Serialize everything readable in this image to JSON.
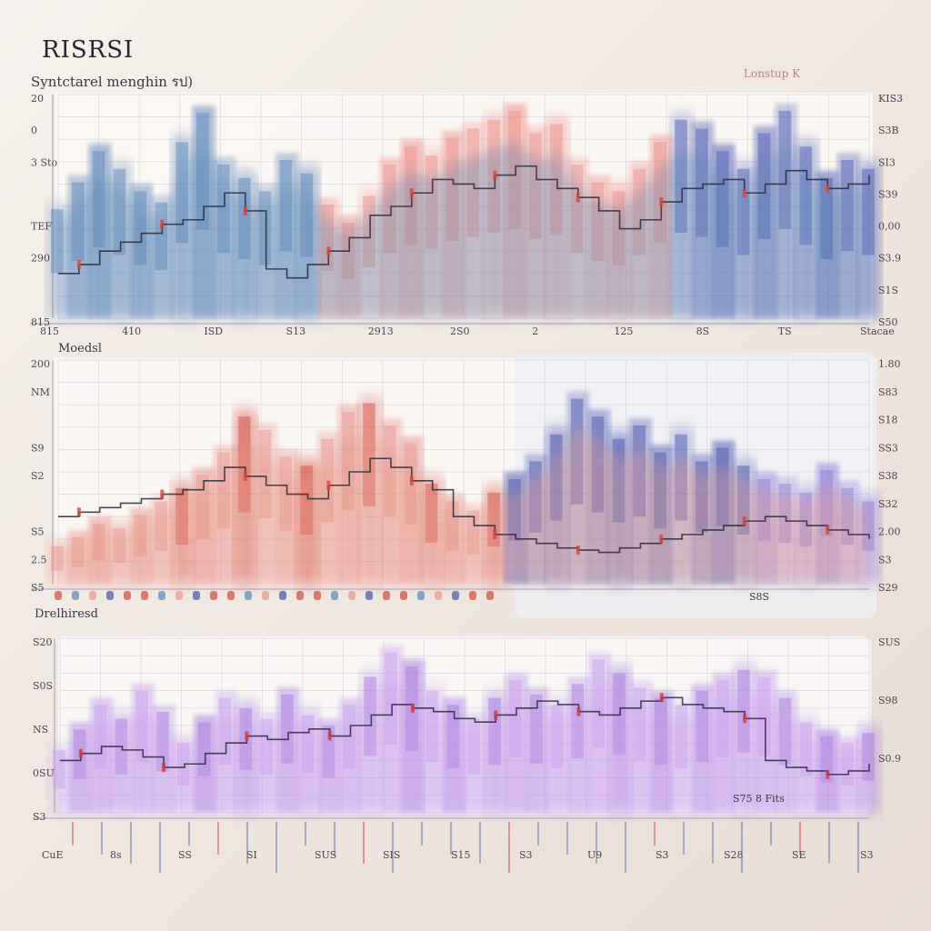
{
  "header": {
    "title": "RISRSI",
    "subtitle": "Syntctarel menghin รป)",
    "right_note": "Lonstup K"
  },
  "chart_data": [
    {
      "type": "area",
      "panel_label": "",
      "y_ticks_left": [
        "20",
        "0",
        "3 Sto",
        "",
        "TEF",
        "290",
        "",
        "815"
      ],
      "y_ticks_right": [
        "KIS3",
        "S3B",
        "SI3",
        "S39",
        "0,00",
        "S3.9",
        "S1S",
        "S50"
      ],
      "x_ticks": [
        "815",
        "410",
        "ISD",
        "S13",
        "2913",
        "2S0",
        "2",
        "125",
        "8S",
        "TS",
        "Stacae"
      ],
      "legend": "",
      "colors": {
        "a": "#5b86b8",
        "b": "#ee8e86",
        "c": "#4a5cb4",
        "line": "#2a2a3a"
      },
      "x": [
        0,
        1,
        2,
        3,
        4,
        5,
        6,
        7,
        8,
        9,
        10,
        11,
        12,
        13,
        14,
        15,
        16,
        17,
        18,
        19,
        20,
        21,
        22,
        23,
        24,
        25,
        26,
        27,
        28,
        29,
        30,
        31,
        32,
        33,
        34,
        35,
        36,
        37,
        38,
        39
      ],
      "series": [
        {
          "values": [
            52,
            64,
            78,
            70,
            60,
            55,
            82,
            95,
            72,
            66,
            60,
            74,
            68,
            54,
            46,
            58,
            72,
            80,
            76,
            84,
            88,
            92,
            96,
            86,
            90,
            72,
            64,
            60,
            70,
            82,
            92,
            88,
            78,
            70,
            86,
            96,
            80,
            66,
            74,
            70
          ]
        },
        {
          "values": [
            20,
            24,
            30,
            34,
            38,
            42,
            44,
            50,
            56,
            48,
            22,
            18,
            24,
            30,
            36,
            46,
            50,
            56,
            62,
            60,
            58,
            64,
            68,
            62,
            58,
            54,
            48,
            40,
            44,
            52,
            58,
            60,
            62,
            56,
            60,
            66,
            62,
            58,
            60,
            64
          ]
        }
      ]
    },
    {
      "type": "area",
      "panel_label": "Moedsl",
      "y_ticks_left": [
        "200",
        "NM",
        "",
        "S9",
        "S2",
        "",
        "S5",
        "2.5",
        "S5"
      ],
      "y_ticks_right": [
        "1.80",
        "S83",
        "S18",
        "SS3",
        "S38",
        "S32",
        "2.00",
        "S3",
        "S29"
      ],
      "x_ticks": [],
      "legend": "S8S",
      "colors": {
        "a": "#e8958a",
        "b": "#d24a3e",
        "c": "#4553ad",
        "d": "#8c7ad8",
        "line": "#2a2a3a"
      },
      "x": [
        0,
        1,
        2,
        3,
        4,
        5,
        6,
        7,
        8,
        9,
        10,
        11,
        12,
        13,
        14,
        15,
        16,
        17,
        18,
        19,
        20,
        21,
        22,
        23,
        24,
        25,
        26,
        27,
        28,
        29,
        30,
        31,
        32,
        33,
        34,
        35,
        36,
        37,
        38,
        39
      ],
      "series": [
        {
          "values": [
            20,
            24,
            30,
            28,
            34,
            40,
            46,
            52,
            62,
            78,
            72,
            60,
            56,
            68,
            80,
            84,
            74,
            66,
            48,
            40,
            36,
            44,
            50,
            58,
            70,
            86,
            78,
            68,
            74,
            62,
            70,
            58,
            64,
            56,
            50,
            48,
            44,
            54,
            46,
            40
          ]
        },
        {
          "values": [
            30,
            32,
            34,
            36,
            38,
            40,
            42,
            46,
            52,
            48,
            44,
            40,
            38,
            44,
            50,
            56,
            52,
            46,
            42,
            30,
            26,
            22,
            20,
            18,
            16,
            15,
            14,
            16,
            18,
            20,
            22,
            24,
            26,
            28,
            30,
            28,
            26,
            24,
            22,
            20
          ]
        }
      ]
    },
    {
      "type": "area",
      "panel_label": "Drelhiresd",
      "y_ticks_left": [
        "S20",
        "S0S",
        "NS",
        "0SU",
        "S3"
      ],
      "y_ticks_right": [
        "SUS",
        "S98",
        "S0.9",
        ""
      ],
      "x_ticks": [
        "CuE",
        "8s",
        "SS",
        "SI",
        "SUS",
        "SIS",
        "S15",
        "S3",
        "U9",
        "S3",
        "S28",
        "SE",
        "S3"
      ],
      "legend": "S75 8 Fits",
      "colors": {
        "a": "#a678e0",
        "b": "#c8a0ee",
        "line": "#2c2a40",
        "red": "#d03c3c"
      },
      "x": [
        0,
        1,
        2,
        3,
        4,
        5,
        6,
        7,
        8,
        9,
        10,
        11,
        12,
        13,
        14,
        15,
        16,
        17,
        18,
        19,
        20,
        21,
        22,
        23,
        24,
        25,
        26,
        27,
        28,
        29,
        30,
        31,
        32,
        33,
        34,
        35,
        36,
        37,
        38,
        39
      ],
      "series": [
        {
          "values": [
            40,
            52,
            66,
            58,
            74,
            62,
            44,
            56,
            70,
            64,
            58,
            72,
            60,
            54,
            66,
            82,
            96,
            88,
            74,
            66,
            58,
            70,
            80,
            72,
            66,
            78,
            92,
            84,
            76,
            70,
            66,
            74,
            80,
            86,
            82,
            70,
            56,
            48,
            44,
            50
          ]
        },
        {
          "values": [
            30,
            34,
            38,
            36,
            32,
            26,
            28,
            34,
            40,
            44,
            42,
            46,
            48,
            44,
            50,
            56,
            62,
            60,
            58,
            54,
            52,
            56,
            60,
            64,
            62,
            58,
            56,
            60,
            64,
            66,
            62,
            60,
            58,
            54,
            30,
            26,
            24,
            22,
            24,
            28
          ]
        }
      ]
    }
  ]
}
